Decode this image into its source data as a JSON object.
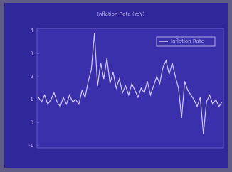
{
  "chart_data": {
    "type": "line",
    "title": "Inflation Rate (YoY)",
    "x": [
      0,
      1,
      2,
      3,
      4,
      5,
      6,
      7,
      8,
      9,
      10,
      11,
      12,
      13,
      14,
      15,
      16,
      17,
      18,
      19,
      20,
      21,
      22,
      23,
      24,
      25,
      26,
      27,
      28,
      29,
      30,
      31,
      32,
      33,
      34,
      35,
      36,
      37,
      38,
      39,
      40,
      41,
      42,
      43,
      44,
      45,
      46,
      47,
      48,
      49,
      50,
      51,
      52,
      53,
      54,
      55,
      56,
      57,
      58,
      59
    ],
    "xlim": [
      0,
      59
    ],
    "series": [
      {
        "name": "Inflation Rate",
        "color": "#cfc8f4",
        "values": [
          1.1,
          0.9,
          1.2,
          0.8,
          1.0,
          1.3,
          0.9,
          0.7,
          1.1,
          0.8,
          1.2,
          0.9,
          1.0,
          0.8,
          1.4,
          1.1,
          1.8,
          2.3,
          3.9,
          1.6,
          2.6,
          1.9,
          2.8,
          1.7,
          2.2,
          1.5,
          1.9,
          1.3,
          1.6,
          1.2,
          1.7,
          1.4,
          1.1,
          1.5,
          1.3,
          1.8,
          1.2,
          1.6,
          2.0,
          1.7,
          2.4,
          2.7,
          2.1,
          2.6,
          2.0,
          1.5,
          0.2,
          1.8,
          1.4,
          1.2,
          1.0,
          0.7,
          1.1,
          -0.5,
          0.9,
          1.2,
          0.8,
          1.0,
          0.7,
          0.9
        ]
      }
    ],
    "ylim": [
      -1.1,
      4.1
    ],
    "yticks": [
      -1,
      0,
      1,
      2,
      3,
      4
    ],
    "grid": false,
    "legend": "upper right"
  }
}
